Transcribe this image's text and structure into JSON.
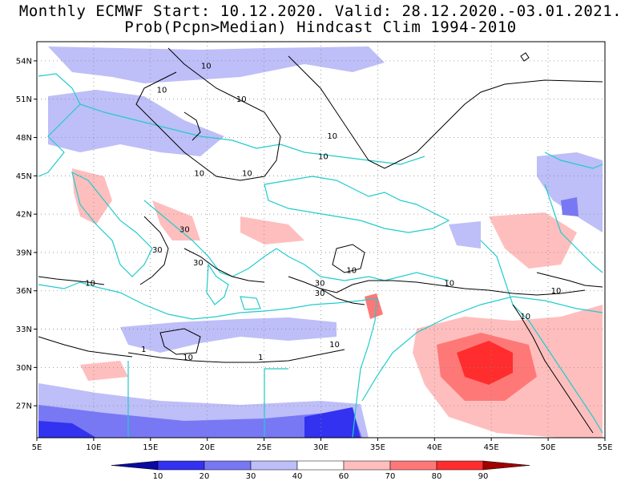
{
  "title": {
    "line1": "Monthly ECMWF Start: 10.12.2020. Valid: 28.12.2020.-03.01.2021.",
    "line2": "Prob(Pcpn>Median) Hindcast Clim 1994-2010"
  },
  "map": {
    "lon_range": [
      5,
      55
    ],
    "lat_range": [
      24.5,
      55.5
    ],
    "x_ticks": [
      "5E",
      "10E",
      "15E",
      "20E",
      "25E",
      "30E",
      "35E",
      "40E",
      "45E",
      "50E",
      "55E"
    ],
    "x_tick_values": [
      5,
      10,
      15,
      20,
      25,
      30,
      35,
      40,
      45,
      50,
      55
    ],
    "y_ticks": [
      "27N",
      "30N",
      "33N",
      "36N",
      "39N",
      "42N",
      "45N",
      "48N",
      "51N",
      "54N"
    ],
    "y_tick_values": [
      27,
      30,
      33,
      36,
      39,
      42,
      45,
      48,
      51,
      54
    ],
    "gridlines": "dotted",
    "coastline_color": "#22cccc",
    "contour_color": "#000000",
    "contour_labels": [
      {
        "text": "10",
        "lon": 19.9,
        "lat": 53.4
      },
      {
        "text": "10",
        "lon": 16.0,
        "lat": 51.5
      },
      {
        "text": "10",
        "lon": 23.0,
        "lat": 50.8
      },
      {
        "text": "10",
        "lon": 31.0,
        "lat": 47.9
      },
      {
        "text": "10",
        "lon": 30.2,
        "lat": 46.3
      },
      {
        "text": "10",
        "lon": 19.3,
        "lat": 45.0
      },
      {
        "text": "10",
        "lon": 23.5,
        "lat": 45.0
      },
      {
        "text": "30",
        "lon": 18.0,
        "lat": 40.6
      },
      {
        "text": "30",
        "lon": 15.6,
        "lat": 39.0
      },
      {
        "text": "30",
        "lon": 19.2,
        "lat": 38.0
      },
      {
        "text": "10",
        "lon": 9.7,
        "lat": 36.4
      },
      {
        "text": "10",
        "lon": 32.7,
        "lat": 37.4
      },
      {
        "text": "30",
        "lon": 29.9,
        "lat": 36.4
      },
      {
        "text": "30",
        "lon": 29.9,
        "lat": 35.6
      },
      {
        "text": "10",
        "lon": 41.3,
        "lat": 36.4
      },
      {
        "text": "10",
        "lon": 50.7,
        "lat": 35.8
      },
      {
        "text": "10",
        "lon": 48.0,
        "lat": 33.8
      },
      {
        "text": "10",
        "lon": 31.2,
        "lat": 31.6
      },
      {
        "text": "1",
        "lon": 14.4,
        "lat": 31.2
      },
      {
        "text": "1",
        "lon": 24.7,
        "lat": 30.6
      },
      {
        "text": "10",
        "lon": 18.3,
        "lat": 30.6
      }
    ]
  },
  "legend": {
    "labels": [
      "10",
      "20",
      "30",
      "40",
      "60",
      "70",
      "80",
      "90"
    ],
    "colors": [
      "#0a0aa0",
      "#3232f0",
      "#7878f5",
      "#bebef8",
      "#ffffff",
      "#ffbebe",
      "#ff7878",
      "#ff2d2d",
      "#a00000"
    ]
  }
}
